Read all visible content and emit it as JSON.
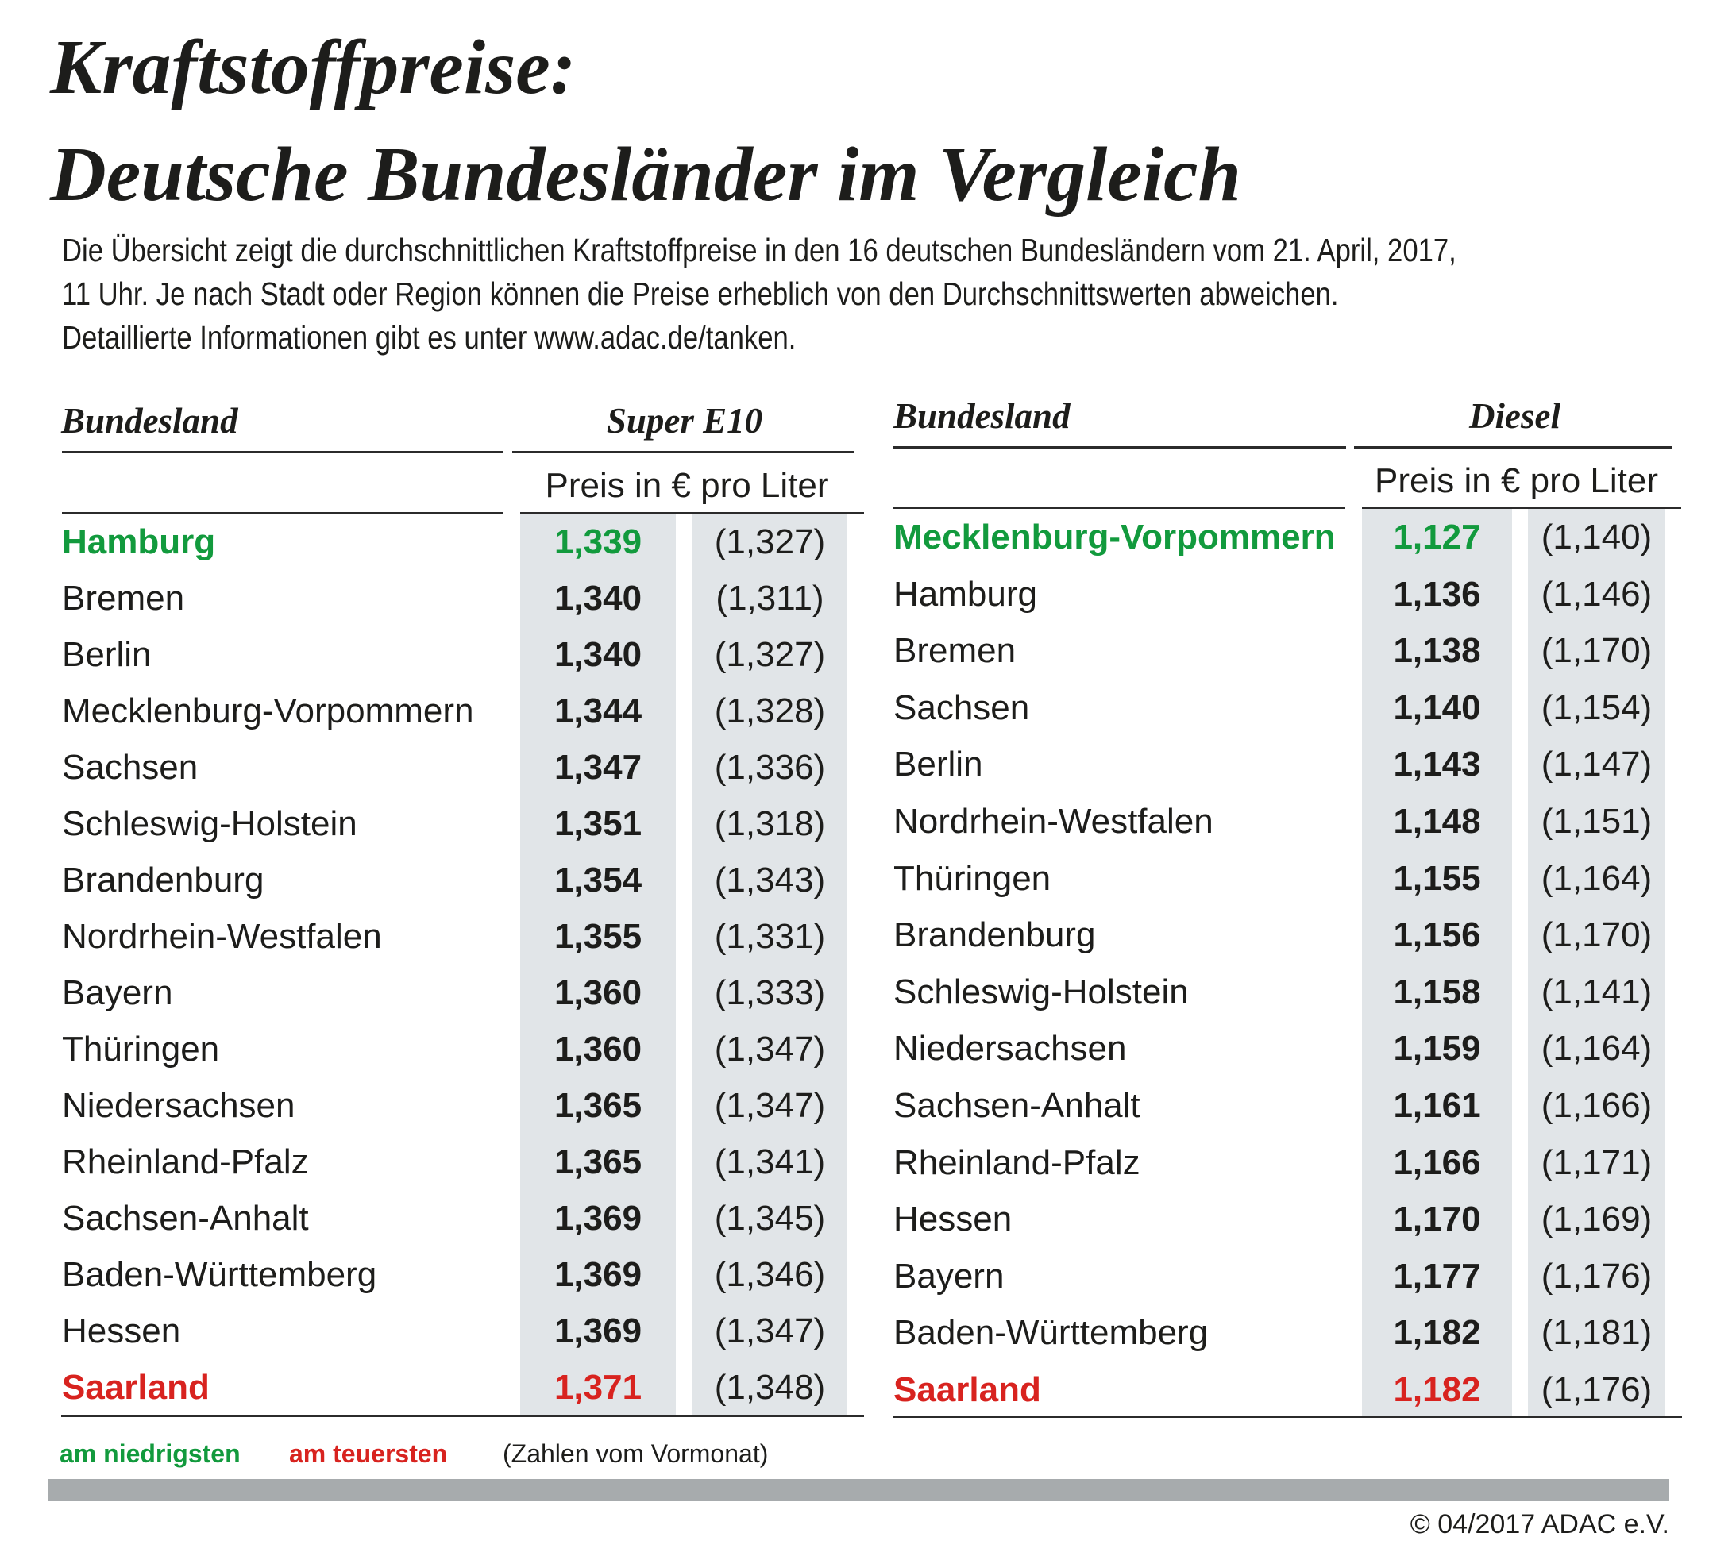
{
  "title": {
    "line1": "Kraftstoffpreise:",
    "line2": "Deutsche Bundesländer im Vergleich"
  },
  "intro": {
    "line1": "Die Übersicht zeigt die durchschnittlichen Kraftstoffpreise in den 16 deutschen Bundesländern vom 21. April, 2017,",
    "line2": "11 Uhr. Je nach Stadt oder Region können die Preise erheblich von den Durchschnittswerten abweichen.",
    "line3": "Detaillierte Informationen gibt es unter www.adac.de/tanken."
  },
  "colors": {
    "lowest": "#129a3d",
    "highest": "#d8231f",
    "column_bg": "#e1e5e8",
    "bar": "#a7abad"
  },
  "tables": [
    {
      "state_header": "Bundesland",
      "fuel_header": "Super E10",
      "unit_label": "Preis in € pro Liter",
      "rows": [
        {
          "state": "Hamburg",
          "price": "1,339",
          "previous": "(1,327)",
          "mark": "low"
        },
        {
          "state": "Bremen",
          "price": "1,340",
          "previous": "(1,311)",
          "mark": ""
        },
        {
          "state": "Berlin",
          "price": "1,340",
          "previous": "(1,327)",
          "mark": ""
        },
        {
          "state": "Mecklenburg-Vorpommern",
          "price": "1,344",
          "previous": "(1,328)",
          "mark": ""
        },
        {
          "state": "Sachsen",
          "price": "1,347",
          "previous": "(1,336)",
          "mark": ""
        },
        {
          "state": "Schleswig-Holstein",
          "price": "1,351",
          "previous": "(1,318)",
          "mark": ""
        },
        {
          "state": "Brandenburg",
          "price": "1,354",
          "previous": "(1,343)",
          "mark": ""
        },
        {
          "state": "Nordrhein-Westfalen",
          "price": "1,355",
          "previous": "(1,331)",
          "mark": ""
        },
        {
          "state": "Bayern",
          "price": "1,360",
          "previous": "(1,333)",
          "mark": ""
        },
        {
          "state": "Thüringen",
          "price": "1,360",
          "previous": "(1,347)",
          "mark": ""
        },
        {
          "state": "Niedersachsen",
          "price": "1,365",
          "previous": "(1,347)",
          "mark": ""
        },
        {
          "state": "Rheinland-Pfalz",
          "price": "1,365",
          "previous": "(1,341)",
          "mark": ""
        },
        {
          "state": "Sachsen-Anhalt",
          "price": "1,369",
          "previous": "(1,345)",
          "mark": ""
        },
        {
          "state": "Baden-Württemberg",
          "price": "1,369",
          "previous": "(1,346)",
          "mark": ""
        },
        {
          "state": "Hessen",
          "price": "1,369",
          "previous": "(1,347)",
          "mark": ""
        },
        {
          "state": "Saarland",
          "price": "1,371",
          "previous": "(1,348)",
          "mark": "high"
        }
      ]
    },
    {
      "state_header": "Bundesland",
      "fuel_header": "Diesel",
      "unit_label": "Preis in € pro Liter",
      "rows": [
        {
          "state": "Mecklenburg-Vorpommern",
          "price": "1,127",
          "previous": "(1,140)",
          "mark": "low"
        },
        {
          "state": "Hamburg",
          "price": "1,136",
          "previous": "(1,146)",
          "mark": ""
        },
        {
          "state": "Bremen",
          "price": "1,138",
          "previous": "(1,170)",
          "mark": ""
        },
        {
          "state": "Sachsen",
          "price": "1,140",
          "previous": "(1,154)",
          "mark": ""
        },
        {
          "state": "Berlin",
          "price": "1,143",
          "previous": "(1,147)",
          "mark": ""
        },
        {
          "state": "Nordrhein-Westfalen",
          "price": "1,148",
          "previous": "(1,151)",
          "mark": ""
        },
        {
          "state": "Thüringen",
          "price": "1,155",
          "previous": "(1,164)",
          "mark": ""
        },
        {
          "state": "Brandenburg",
          "price": "1,156",
          "previous": "(1,170)",
          "mark": ""
        },
        {
          "state": "Schleswig-Holstein",
          "price": "1,158",
          "previous": "(1,141)",
          "mark": ""
        },
        {
          "state": "Niedersachsen",
          "price": "1,159",
          "previous": "(1,164)",
          "mark": ""
        },
        {
          "state": "Sachsen-Anhalt",
          "price": "1,161",
          "previous": "(1,166)",
          "mark": ""
        },
        {
          "state": "Rheinland-Pfalz",
          "price": "1,166",
          "previous": "(1,171)",
          "mark": ""
        },
        {
          "state": "Hessen",
          "price": "1,170",
          "previous": "(1,169)",
          "mark": ""
        },
        {
          "state": "Bayern",
          "price": "1,177",
          "previous": "(1,176)",
          "mark": ""
        },
        {
          "state": "Baden-Württemberg",
          "price": "1,182",
          "previous": "(1,181)",
          "mark": ""
        },
        {
          "state": "Saarland",
          "price": "1,182",
          "previous": "(1,176)",
          "mark": "high"
        }
      ]
    }
  ],
  "legend": {
    "lowest": "am niedrigsten",
    "highest": "am teuersten",
    "previous_note": "(Zahlen vom Vormonat)"
  },
  "copyright": "© 04/2017 ADAC e.V."
}
